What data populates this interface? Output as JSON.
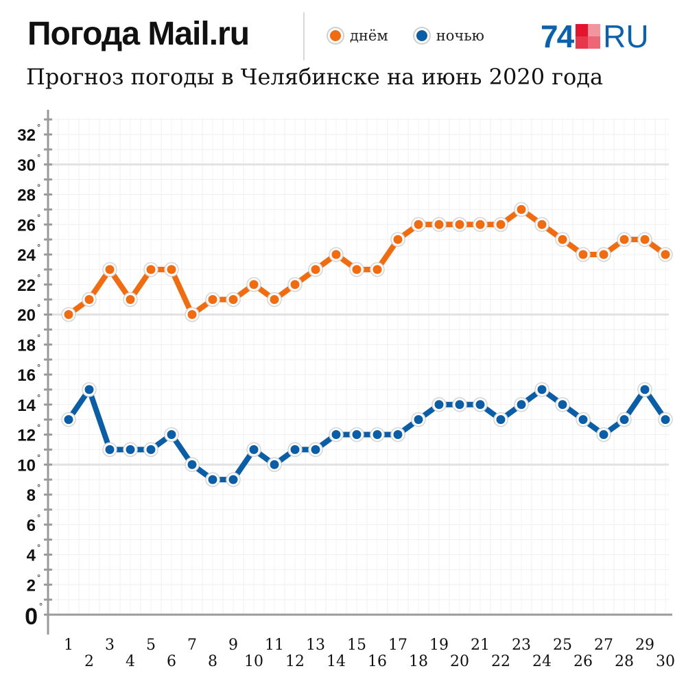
{
  "header": {
    "brand": "Погода Mail.ru",
    "subtitle": "Прогноз погоды в Челябинске на июнь 2020 года",
    "logo_number": "74",
    "logo_text": "RU"
  },
  "legend": {
    "day_label": "днём",
    "night_label": "ночью"
  },
  "colors": {
    "day": "#f26b0f",
    "night": "#0a5ea8",
    "logo_blue": "#0a62ae",
    "logo_red": "#e3142b"
  },
  "chart_data": {
    "type": "line",
    "title": "Прогноз погоды в Челябинске на июнь 2020 года",
    "xlabel": "",
    "ylabel": "",
    "x": [
      1,
      2,
      3,
      4,
      5,
      6,
      7,
      8,
      9,
      10,
      11,
      12,
      13,
      14,
      15,
      16,
      17,
      18,
      19,
      20,
      21,
      22,
      23,
      24,
      25,
      26,
      27,
      28,
      29,
      30
    ],
    "x_tick_labels": [
      "1",
      "2",
      "3",
      "4",
      "5",
      "6",
      "7",
      "8",
      "9",
      "10",
      "11",
      "12",
      "13",
      "14",
      "15",
      "16",
      "17",
      "18",
      "19",
      "20",
      "21",
      "22",
      "23",
      "24",
      "25",
      "26",
      "27",
      "28",
      "29",
      "30"
    ],
    "y_ticks": [
      0,
      2,
      4,
      6,
      8,
      10,
      12,
      14,
      16,
      18,
      20,
      22,
      24,
      26,
      28,
      30,
      32
    ],
    "y_tick_labels": [
      "0",
      "2",
      "4",
      "6",
      "8",
      "10",
      "12",
      "14",
      "16",
      "18",
      "20",
      "22",
      "24",
      "26",
      "28",
      "30",
      "32"
    ],
    "y_tick_suffix": "°",
    "ylim": [
      0,
      32
    ],
    "grid": true,
    "legend_position": "top",
    "series": [
      {
        "name": "днём",
        "color": "#f26b0f",
        "values": [
          20,
          21,
          23,
          21,
          23,
          23,
          20,
          21,
          21,
          22,
          21,
          22,
          23,
          24,
          23,
          23,
          25,
          26,
          26,
          26,
          26,
          26,
          27,
          26,
          25,
          24,
          24,
          25,
          25,
          24
        ]
      },
      {
        "name": "ночью",
        "color": "#0a5ea8",
        "values": [
          13,
          15,
          11,
          11,
          11,
          12,
          10,
          9,
          9,
          11,
          10,
          11,
          11,
          12,
          12,
          12,
          12,
          13,
          14,
          14,
          14,
          13,
          14,
          15,
          14,
          13,
          12,
          13,
          15,
          13
        ]
      }
    ]
  }
}
